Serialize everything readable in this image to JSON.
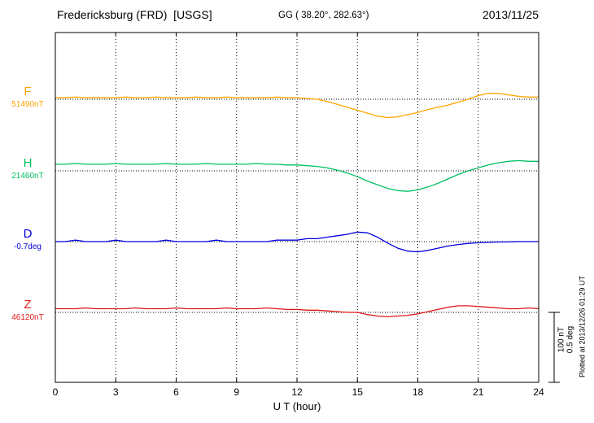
{
  "header": {
    "station": "Fredericksburg (FRD)  [USGS]",
    "coords": "GG ( 38.20°, 282.63°)",
    "date": "2013/11/25"
  },
  "side": {
    "scale_nt": "100 nT",
    "scale_deg": "0.5 deg",
    "plotted_at": "Plotted at 2013/12/26 01:29 UT"
  },
  "chart_data": {
    "type": "line",
    "title": "Fredericksburg (FRD) [USGS] magnetogram 2013/11/25",
    "xlabel": "U T (hour)",
    "x_range": [
      0,
      24
    ],
    "x_ticks": [
      0,
      3,
      6,
      9,
      12,
      15,
      18,
      21,
      24
    ],
    "grid": "vertical-dotted-every-3h, dotted baseline per trace",
    "scale_reference": {
      "nT": 100,
      "deg": 0.5
    },
    "series": [
      {
        "name": "F",
        "label": "F",
        "ref_label": "51490nT",
        "unit": "nT",
        "color": "#ffa500",
        "x_start": 0,
        "x_step": 0.5,
        "values": [
          2,
          2,
          3,
          2,
          2,
          2,
          2,
          3,
          2,
          2,
          3,
          2,
          2,
          2,
          3,
          2,
          2,
          3,
          2,
          2,
          2,
          2,
          3,
          2,
          2,
          1,
          0,
          -3,
          -7,
          -11,
          -15,
          -19,
          -23,
          -25,
          -24,
          -21,
          -18,
          -14,
          -11,
          -8,
          -4,
          0,
          5,
          8,
          8,
          6,
          4,
          3,
          3
        ]
      },
      {
        "name": "H",
        "label": "H",
        "ref_label": "21460nT",
        "unit": "nT",
        "color": "#00c060",
        "x_start": 0,
        "x_step": 0.5,
        "values": [
          9,
          9,
          10,
          9,
          9,
          9,
          10,
          9,
          9,
          9,
          9,
          10,
          9,
          9,
          9,
          10,
          9,
          9,
          9,
          9,
          10,
          9,
          9,
          8,
          8,
          7,
          6,
          4,
          1,
          -3,
          -8,
          -14,
          -19,
          -24,
          -27,
          -28,
          -26,
          -22,
          -17,
          -11,
          -5,
          0,
          4,
          8,
          11,
          13,
          14,
          13,
          13
        ]
      },
      {
        "name": "D",
        "label": "D",
        "ref_label": "-0.7deg",
        "unit": "deg",
        "color": "#0000e0",
        "x_start": 0,
        "x_step": 0.5,
        "values": [
          0,
          0,
          0.01,
          0,
          0,
          0,
          0.01,
          0,
          0,
          0,
          0,
          0.01,
          0,
          0,
          0,
          0,
          0.01,
          0,
          0,
          0,
          0,
          0,
          0.01,
          0.01,
          0.01,
          0.02,
          0.02,
          0.03,
          0.04,
          0.05,
          0.065,
          0.06,
          0.03,
          -0.01,
          -0.045,
          -0.065,
          -0.07,
          -0.06,
          -0.045,
          -0.03,
          -0.02,
          -0.012,
          -0.008,
          -0.005,
          -0.003,
          -0.002,
          0,
          0,
          0
        ]
      },
      {
        "name": "Z",
        "label": "Z",
        "ref_label": "46120nT",
        "unit": "nT",
        "color": "#e01818",
        "x_start": 0,
        "x_step": 0.5,
        "values": [
          5,
          5,
          5,
          6,
          5,
          5,
          5,
          5,
          6,
          5,
          5,
          5,
          6,
          5,
          5,
          5,
          5,
          6,
          5,
          5,
          5,
          6,
          5,
          4,
          4,
          3,
          3,
          2,
          1,
          0,
          0,
          -3,
          -5,
          -6,
          -5,
          -4,
          -2,
          1,
          4,
          7,
          9,
          9,
          8,
          7,
          6,
          5,
          5,
          6,
          5
        ]
      }
    ]
  }
}
